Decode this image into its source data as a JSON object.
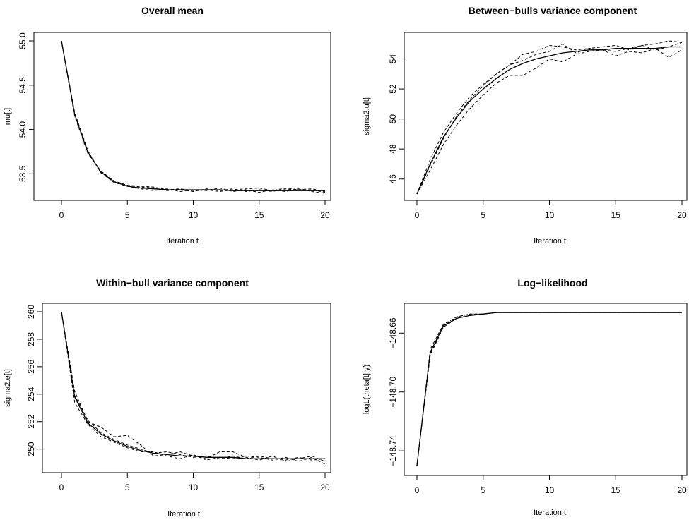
{
  "chart_data": [
    {
      "type": "line",
      "title": "Overall mean",
      "xlabel": "Iteration t",
      "ylabel": "mu[t]",
      "xlim": [
        0,
        20
      ],
      "ylim": [
        53.28,
        55.0
      ],
      "xticks": [
        0,
        5,
        10,
        15,
        20
      ],
      "yticks": [
        53.5,
        54.0,
        54.5,
        55.0
      ],
      "ytick_labels": [
        "53.5",
        "54.0",
        "54.5",
        "55.0"
      ],
      "x": [
        0,
        1,
        2,
        3,
        4,
        5,
        6,
        7,
        8,
        9,
        10,
        11,
        12,
        13,
        14,
        15,
        16,
        17,
        18,
        19,
        20
      ],
      "series": [
        {
          "style": "solid",
          "values": [
            55.0,
            54.17,
            53.74,
            53.52,
            53.41,
            53.36,
            53.34,
            53.33,
            53.32,
            53.32,
            53.32,
            53.32,
            53.32,
            53.31,
            53.31,
            53.31,
            53.31,
            53.31,
            53.31,
            53.31,
            53.31
          ]
        },
        {
          "style": "dashed",
          "values": [
            55.0,
            54.15,
            53.73,
            53.53,
            53.42,
            53.37,
            53.35,
            53.34,
            53.31,
            53.32,
            53.3,
            53.33,
            53.31,
            53.33,
            53.3,
            53.32,
            53.3,
            53.33,
            53.31,
            53.32,
            53.29
          ]
        },
        {
          "style": "dashed",
          "values": [
            55.0,
            54.19,
            53.76,
            53.51,
            53.4,
            53.36,
            53.33,
            53.31,
            53.33,
            53.3,
            53.32,
            53.31,
            53.34,
            53.3,
            53.32,
            53.29,
            53.32,
            53.3,
            53.33,
            53.3,
            53.28
          ]
        },
        {
          "style": "dashed",
          "values": [
            55.0,
            54.16,
            53.75,
            53.52,
            53.41,
            53.37,
            53.36,
            53.35,
            53.32,
            53.33,
            53.31,
            53.32,
            53.3,
            53.32,
            53.33,
            53.34,
            53.31,
            53.34,
            53.32,
            53.33,
            53.3
          ]
        }
      ]
    },
    {
      "type": "line",
      "title": "Between−bulls variance component",
      "xlabel": "Iteration t",
      "ylabel": "sigma2.u[t]",
      "xlim": [
        0,
        20
      ],
      "ylim": [
        45.0,
        55.2
      ],
      "xticks": [
        0,
        5,
        10,
        15,
        20
      ],
      "yticks": [
        46,
        48,
        50,
        52,
        54
      ],
      "ytick_labels": [
        "46",
        "48",
        "50",
        "52",
        "54"
      ],
      "x": [
        0,
        1,
        2,
        3,
        4,
        5,
        6,
        7,
        8,
        9,
        10,
        11,
        12,
        13,
        14,
        15,
        16,
        17,
        18,
        19,
        20
      ],
      "series": [
        {
          "style": "solid",
          "values": [
            45.0,
            47.0,
            48.8,
            50.1,
            51.2,
            52.0,
            52.7,
            53.3,
            53.7,
            54.0,
            54.2,
            54.4,
            54.5,
            54.6,
            54.6,
            54.7,
            54.7,
            54.7,
            54.7,
            54.8,
            54.8
          ]
        },
        {
          "style": "dashed",
          "values": [
            45.0,
            47.3,
            49.1,
            50.4,
            51.5,
            52.3,
            53.0,
            53.6,
            54.3,
            54.5,
            54.9,
            54.8,
            54.6,
            54.7,
            54.6,
            54.5,
            54.7,
            54.9,
            54.6,
            54.8,
            55.1
          ]
        },
        {
          "style": "dashed",
          "values": [
            45.0,
            46.6,
            48.3,
            49.6,
            50.7,
            51.6,
            52.4,
            52.9,
            52.9,
            53.4,
            54.0,
            53.8,
            54.3,
            54.5,
            54.6,
            54.2,
            54.5,
            54.4,
            54.7,
            54.1,
            54.6
          ]
        },
        {
          "style": "dashed",
          "values": [
            45.0,
            46.9,
            48.7,
            50.2,
            51.3,
            52.2,
            53.0,
            53.6,
            53.9,
            54.3,
            54.5,
            55.0,
            54.4,
            54.7,
            54.8,
            54.9,
            54.6,
            54.9,
            55.0,
            55.2,
            55.1
          ]
        }
      ]
    },
    {
      "type": "line",
      "title": "Within−bull variance component",
      "xlabel": "Iteration t",
      "ylabel": "sigma2.e[t]",
      "xlim": [
        0,
        20
      ],
      "ylim": [
        248.8,
        260.0
      ],
      "xticks": [
        0,
        5,
        10,
        15,
        20
      ],
      "yticks": [
        250,
        252,
        254,
        256,
        258,
        260
      ],
      "ytick_labels": [
        "250",
        "252",
        "254",
        "256",
        "258",
        "260"
      ],
      "x": [
        0,
        1,
        2,
        3,
        4,
        5,
        6,
        7,
        8,
        9,
        10,
        11,
        12,
        13,
        14,
        15,
        16,
        17,
        18,
        19,
        20
      ],
      "series": [
        {
          "style": "solid",
          "values": [
            260.0,
            253.8,
            251.9,
            251.1,
            250.6,
            250.2,
            249.9,
            249.7,
            249.6,
            249.5,
            249.5,
            249.4,
            249.4,
            249.4,
            249.3,
            249.3,
            249.3,
            249.3,
            249.3,
            249.3,
            249.3
          ]
        },
        {
          "style": "dashed",
          "values": [
            260.0,
            254.2,
            252.0,
            251.6,
            250.9,
            251.0,
            250.3,
            249.5,
            249.6,
            249.8,
            249.5,
            249.3,
            249.8,
            249.8,
            249.4,
            249.2,
            249.5,
            249.1,
            249.3,
            249.5,
            249.1
          ]
        },
        {
          "style": "dashed",
          "values": [
            260.0,
            253.4,
            251.8,
            250.9,
            250.5,
            250.1,
            249.8,
            249.8,
            249.5,
            249.3,
            249.6,
            249.2,
            249.4,
            249.3,
            249.5,
            249.4,
            249.2,
            249.4,
            249.1,
            249.4,
            248.9
          ]
        },
        {
          "style": "dashed",
          "values": [
            260.0,
            253.9,
            252.1,
            251.2,
            250.7,
            250.3,
            250.0,
            249.7,
            249.8,
            249.6,
            249.4,
            249.5,
            249.3,
            249.5,
            249.3,
            249.5,
            249.3,
            249.2,
            249.4,
            249.2,
            249.3
          ]
        }
      ]
    },
    {
      "type": "line",
      "title": "Log−likelihood",
      "xlabel": "Iteration t",
      "ylabel": "logL(theta[t];y)",
      "xlim": [
        0,
        20
      ],
      "ylim": [
        -148.75,
        -148.645
      ],
      "xticks": [
        0,
        5,
        10,
        15,
        20
      ],
      "yticks": [
        -148.74,
        -148.7,
        -148.66
      ],
      "ytick_labels": [
        "−148.74",
        "−148.70",
        "−148.66"
      ],
      "x": [
        0,
        1,
        2,
        3,
        4,
        5,
        6,
        7,
        8,
        9,
        10,
        11,
        12,
        13,
        14,
        15,
        16,
        17,
        18,
        19,
        20
      ],
      "series": [
        {
          "style": "solid",
          "values": [
            -148.75,
            -148.673,
            -148.655,
            -148.65,
            -148.648,
            -148.647,
            -148.646,
            -148.646,
            -148.646,
            -148.646,
            -148.646,
            -148.646,
            -148.646,
            -148.646,
            -148.646,
            -148.646,
            -148.646,
            -148.646,
            -148.646,
            -148.646,
            -148.646
          ]
        },
        {
          "style": "dashed",
          "values": [
            -148.75,
            -148.671,
            -148.654,
            -148.649,
            -148.647,
            -148.647,
            -148.646,
            -148.646,
            -148.646,
            -148.646,
            -148.646,
            -148.646,
            -148.646,
            -148.646,
            -148.646,
            -148.646,
            -148.646,
            -148.646,
            -148.646,
            -148.646,
            -148.646
          ]
        },
        {
          "style": "dashed",
          "values": [
            -148.75,
            -148.675,
            -148.656,
            -148.65,
            -148.648,
            -148.647,
            -148.646,
            -148.646,
            -148.646,
            -148.646,
            -148.646,
            -148.646,
            -148.646,
            -148.646,
            -148.646,
            -148.646,
            -148.646,
            -148.646,
            -148.646,
            -148.646,
            -148.646
          ]
        },
        {
          "style": "dashed",
          "values": [
            -148.75,
            -148.674,
            -148.655,
            -148.649,
            -148.647,
            -148.647,
            -148.646,
            -148.646,
            -148.646,
            -148.646,
            -148.646,
            -148.646,
            -148.646,
            -148.646,
            -148.646,
            -148.646,
            -148.646,
            -148.646,
            -148.646,
            -148.646,
            -148.646
          ]
        }
      ]
    }
  ]
}
